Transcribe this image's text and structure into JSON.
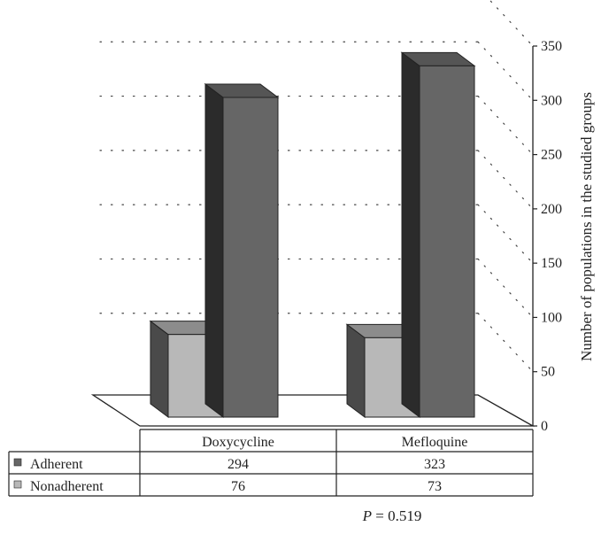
{
  "chart_data": {
    "type": "bar",
    "categories": [
      "Doxycycline",
      "Mefloquine"
    ],
    "series": [
      {
        "name": "Adherent",
        "values": [
          294,
          323
        ],
        "color": "#666666",
        "side_color": "#2b2b2b",
        "top_color": "#555555"
      },
      {
        "name": "Nonadherent",
        "values": [
          76,
          73
        ],
        "color": "#b8b8b8",
        "side_color": "#4a4a4a",
        "top_color": "#8c8c8c"
      }
    ],
    "ylabel": "Number of populations in the studied groups",
    "ylim": [
      0,
      350
    ],
    "yticks": [
      0,
      50,
      100,
      150,
      200,
      250,
      300,
      350
    ],
    "grid": true,
    "legend": "data-table-left",
    "annotation": {
      "symbol": "P",
      "text": " = 0.519"
    }
  }
}
